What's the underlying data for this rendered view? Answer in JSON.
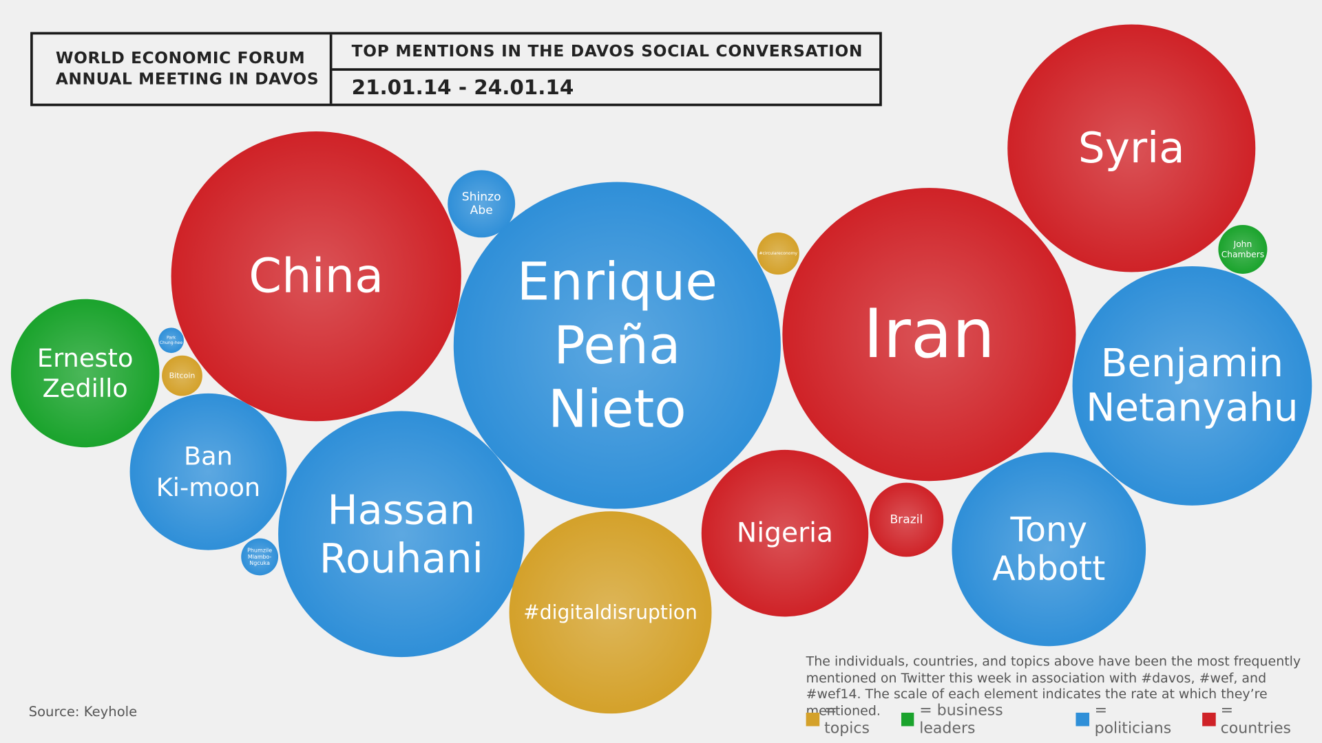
{
  "header": {
    "org_line1": "WORLD ECONOMIC FORUM",
    "org_line2": "ANNUAL MEETING IN DAVOS",
    "title": "TOP MENTIONS IN THE DAVOS SOCIAL CONVERSATION",
    "date_range": "21.01.14 - 24.01.14"
  },
  "colors": {
    "topics": "#d4a12a",
    "business_leaders": "#1aa32c",
    "politicians": "#2f8fd8",
    "countries": "#cf2227"
  },
  "chart_data": {
    "type": "bubble",
    "title": "TOP MENTIONS IN THE DAVOS SOCIAL CONVERSATION",
    "subtitle": "21.01.14 - 24.01.14",
    "bubbles": [
      {
        "name": "China",
        "category": "countries",
        "size": 172
      },
      {
        "name": "Enrique Peña Nieto",
        "lines": [
          "Enrique",
          "Peña",
          "Nieto"
        ],
        "category": "politicians",
        "size": 194
      },
      {
        "name": "Iran",
        "category": "countries",
        "size": 174
      },
      {
        "name": "Syria",
        "category": "countries",
        "size": 147
      },
      {
        "name": "Benjamin Netanyahu",
        "lines": [
          "Benjamin",
          "Netanyahu"
        ],
        "category": "politicians",
        "size": 142
      },
      {
        "name": "Hassan Rouhani",
        "lines": [
          "Hassan",
          "Rouhani"
        ],
        "category": "politicians",
        "size": 146
      },
      {
        "name": "#digitaldisruption",
        "category": "topics",
        "size": 120
      },
      {
        "name": "Tony Abbott",
        "lines": [
          "Tony",
          "Abbott"
        ],
        "category": "politicians",
        "size": 115
      },
      {
        "name": "Nigeria",
        "category": "countries",
        "size": 99
      },
      {
        "name": "Ban Ki-moon",
        "lines": [
          "Ban",
          "Ki-moon"
        ],
        "category": "politicians",
        "size": 93
      },
      {
        "name": "Ernesto Zedillo",
        "lines": [
          "Ernesto",
          "Zedillo"
        ],
        "category": "business_leaders",
        "size": 88
      },
      {
        "name": "Brazil",
        "category": "countries",
        "size": 44
      },
      {
        "name": "Shinzo Abe",
        "lines": [
          "Shinzo",
          "Abe"
        ],
        "category": "politicians",
        "size": 40
      },
      {
        "name": "John Chambers",
        "lines": [
          "John",
          "Chambers"
        ],
        "category": "business_leaders",
        "size": 29
      },
      {
        "name": "#circulareconomy",
        "category": "topics",
        "size": 25
      },
      {
        "name": "Bitcoin",
        "category": "topics",
        "size": 24
      },
      {
        "name": "Phumzile Mlambo-Ngcuka",
        "lines": [
          "Phumzile",
          "Mlambo-",
          "Ngcuka"
        ],
        "category": "politicians",
        "size": 22
      },
      {
        "name": "Park Chung-hee",
        "lines": [
          "Park",
          "Chung-hee"
        ],
        "category": "politicians",
        "size": 15
      }
    ],
    "legend": [
      {
        "key": "topics",
        "label": "= topics"
      },
      {
        "key": "business_leaders",
        "label": "= business leaders"
      },
      {
        "key": "politicians",
        "label": "= politicians"
      },
      {
        "key": "countries",
        "label": "= countries"
      }
    ]
  },
  "footnote": "The individuals, countries, and topics above have been the most frequently mentioned on Twitter this week in association with #davos, #wef, and #wef14. The scale of each element indicates the rate at which they’re mentioned.",
  "source": "Source: Keyhole"
}
